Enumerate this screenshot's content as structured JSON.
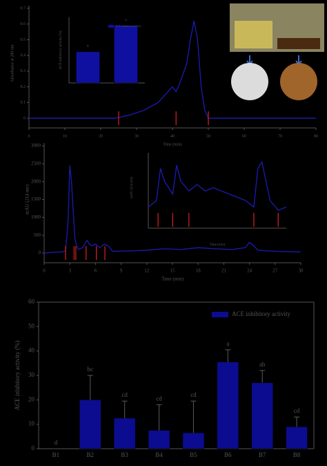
{
  "chart_data": [
    {
      "type": "line",
      "x_label": "Time (min)",
      "y_label": "Absorbance at 280 nm",
      "color": "#1a1aa8",
      "cut_color": "#e02020",
      "x": [
        0,
        10,
        20,
        24,
        28,
        32,
        36,
        40,
        41,
        42,
        44,
        45,
        46,
        47,
        48,
        49,
        50,
        60,
        70,
        80
      ],
      "values": [
        0,
        0,
        0,
        0,
        0.02,
        0.05,
        0.1,
        0.2,
        0.17,
        0.22,
        0.35,
        0.5,
        0.62,
        0.5,
        0.2,
        0.05,
        0,
        0,
        0,
        0
      ],
      "cuts": [
        25,
        41,
        50
      ],
      "xlim": [
        0,
        80
      ],
      "xticks": [
        0,
        10,
        20,
        30,
        40,
        50,
        60,
        70,
        80
      ],
      "ylim": [
        0,
        0.7
      ],
      "yticks": [
        0.0,
        0.1,
        0.2,
        0.3,
        0.4,
        0.5,
        0.6,
        0.7
      ]
    },
    {
      "type": "bar",
      "legend": "ACE inhibitory activity",
      "y_label": "ACE inhibitory activity (%)",
      "color": "#1010a0",
      "values": [
        38,
        70
      ],
      "letters": [
        "b",
        "a"
      ],
      "ylim": [
        0,
        80
      ]
    },
    {
      "type": "line",
      "x_label": "Time (min)",
      "y_label": "mAU (214 nm)",
      "color": "#1a1aa8",
      "cut_color": "#e02020",
      "x": [
        0,
        1,
        2,
        2.5,
        2.8,
        3.0,
        3.2,
        3.4,
        3.6,
        3.8,
        4.0,
        4.5,
        5,
        5.3,
        5.6,
        6,
        6.5,
        7,
        7.5,
        8,
        10,
        12,
        14,
        16,
        18,
        20,
        22,
        23.5,
        24,
        24.5,
        25,
        27,
        30
      ],
      "values": [
        0,
        20,
        30,
        60,
        900,
        2450,
        2000,
        1150,
        400,
        200,
        100,
        150,
        350,
        250,
        200,
        250,
        150,
        250,
        200,
        50,
        60,
        80,
        120,
        100,
        150,
        120,
        100,
        150,
        300,
        200,
        80,
        50,
        30
      ],
      "cuts": [
        2.5,
        3.5,
        3.7,
        4.9,
        6.1,
        7.1
      ],
      "xlim": [
        0,
        30
      ],
      "xticks": [
        0,
        3,
        6,
        9,
        12,
        15,
        18,
        21,
        24,
        27,
        30
      ],
      "ylim": [
        0,
        3000
      ],
      "yticks": [
        0,
        500,
        1000,
        1500,
        2000,
        2500,
        3000
      ]
    },
    {
      "type": "line",
      "x_label": "Time (min)",
      "y_label": "mAU (214 nm)",
      "color": "#1a1aa8",
      "cut_color": "#e02020",
      "x": [
        0,
        1,
        1.5,
        2,
        3,
        3.5,
        4,
        5,
        6,
        7,
        8,
        9,
        10,
        11,
        12,
        13,
        13.5,
        14,
        15,
        16,
        17
      ],
      "values": [
        20,
        30,
        80,
        60,
        40,
        85,
        60,
        45,
        55,
        45,
        50,
        45,
        40,
        35,
        30,
        20,
        80,
        90,
        30,
        15,
        20
      ],
      "cuts": [
        1.2,
        3,
        5,
        13,
        16
      ],
      "xlim": [
        0,
        17
      ],
      "ylim": [
        0,
        100
      ]
    },
    {
      "type": "bar",
      "legend": "ACE inhibitory activity",
      "y_label": "ACE inhibitory activity (%)",
      "color": "#0c0c90",
      "categories": [
        "B1",
        "B2",
        "B3",
        "B4",
        "B5",
        "B6",
        "B7",
        "B8"
      ],
      "values": [
        0,
        20,
        12.5,
        7.5,
        6.5,
        35.5,
        27,
        9
      ],
      "errors": [
        0,
        10,
        7,
        10.5,
        13,
        5,
        5,
        4
      ],
      "letters": [
        "d",
        "bc",
        "cd",
        "cd",
        "cd",
        "a",
        "ab",
        "cd"
      ],
      "ylim": [
        0,
        60
      ],
      "yticks": [
        0,
        10,
        20,
        30,
        40,
        50,
        60
      ]
    }
  ]
}
